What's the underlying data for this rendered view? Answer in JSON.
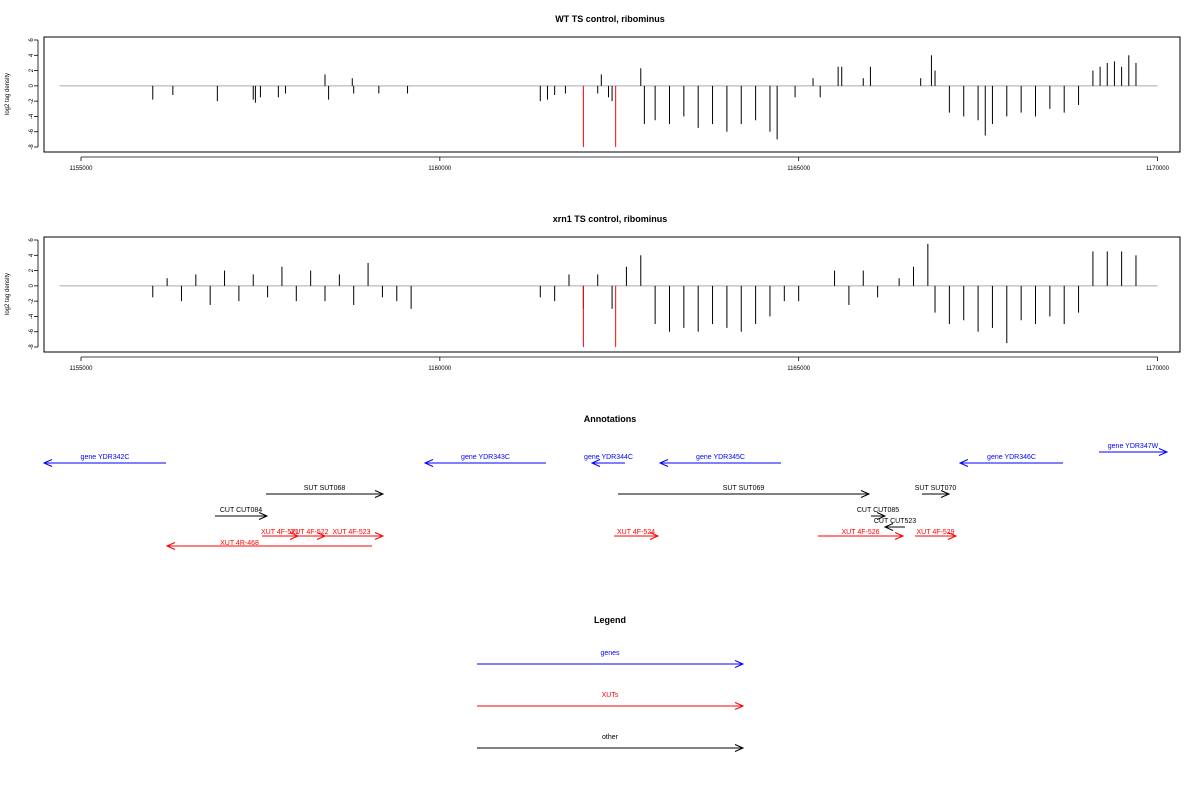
{
  "colors": {
    "gene": "#0000FF",
    "xut": "#FF0000",
    "other": "#000000",
    "baseline": "#AAAAAA",
    "highlight": "#FF0000"
  },
  "chart_data": [
    {
      "type": "bar",
      "title": "WT TS control, ribominus",
      "ylabel": "log2 tag density",
      "xlim": [
        1154700,
        1170000
      ],
      "ylim": [
        -8,
        6
      ],
      "xticks": [
        1155000,
        1160000,
        1165000,
        1170000
      ],
      "yticks": [
        6,
        4,
        2,
        0,
        -2,
        -4,
        -6,
        -8
      ],
      "highlight_positions": [
        1162000,
        1162450
      ],
      "x": [
        1156000,
        1156280,
        1156900,
        1157400,
        1157430,
        1157500,
        1157750,
        1157850,
        1158400,
        1158450,
        1158780,
        1158800,
        1159150,
        1159550,
        1161400,
        1161500,
        1161600,
        1161750,
        1162200,
        1162250,
        1162350,
        1162400,
        1162800,
        1162850,
        1163000,
        1163200,
        1163400,
        1163600,
        1163800,
        1164000,
        1164200,
        1164400,
        1164600,
        1164700,
        1164950,
        1165200,
        1165300,
        1165550,
        1165600,
        1165900,
        1166000,
        1166700,
        1166850,
        1166900,
        1167100,
        1167300,
        1167500,
        1167600,
        1167700,
        1167900,
        1168100,
        1168300,
        1168500,
        1168700,
        1168900,
        1169100,
        1169200,
        1169300,
        1169400,
        1169500,
        1169600,
        1169700
      ],
      "y": [
        -1.8,
        -1.2,
        -2,
        -1.8,
        -2.2,
        -1.5,
        -1.5,
        -1,
        1.5,
        -1.8,
        1,
        -1,
        -1,
        -1,
        -2,
        -1.8,
        -1.2,
        -1,
        -1,
        1.5,
        -1.5,
        -2,
        2.3,
        -5,
        -4.5,
        -5,
        -4,
        -5.5,
        -5,
        -6,
        -5,
        -4.5,
        -6,
        -7,
        -1.5,
        1,
        -1.5,
        2.5,
        2.5,
        1,
        2.5,
        1,
        4,
        2,
        -3.5,
        -4,
        -4.5,
        -6.5,
        -5,
        -4,
        -3.5,
        -4,
        -3,
        -3.5,
        -2.5,
        2,
        2.5,
        3,
        3.2,
        2.5,
        4,
        3
      ]
    },
    {
      "type": "bar",
      "title": "xrn1 TS control, ribominus",
      "ylabel": "log2 tag density",
      "xlim": [
        1154700,
        1170000
      ],
      "ylim": [
        -8,
        6
      ],
      "xticks": [
        1155000,
        1160000,
        1165000,
        1170000
      ],
      "yticks": [
        6,
        4,
        2,
        0,
        -2,
        -4,
        -6,
        -8
      ],
      "highlight_positions": [
        1162000,
        1162450
      ],
      "x": [
        1156000,
        1156200,
        1156400,
        1156600,
        1156800,
        1157000,
        1157200,
        1157400,
        1157600,
        1157800,
        1158000,
        1158200,
        1158400,
        1158600,
        1158800,
        1159000,
        1159200,
        1159400,
        1159600,
        1161400,
        1161600,
        1161800,
        1162000,
        1162200,
        1162400,
        1162600,
        1162800,
        1163000,
        1163200,
        1163400,
        1163600,
        1163800,
        1164000,
        1164200,
        1164400,
        1164600,
        1164800,
        1165000,
        1165500,
        1165700,
        1165900,
        1166100,
        1166400,
        1166600,
        1166800,
        1166900,
        1167100,
        1167300,
        1167500,
        1167700,
        1167900,
        1168100,
        1168300,
        1168500,
        1168700,
        1168900,
        1169100,
        1169300,
        1169500,
        1169700
      ],
      "y": [
        -1.5,
        1,
        -2,
        1.5,
        -2.5,
        2,
        -2,
        1.5,
        -1.5,
        2.5,
        -2,
        2,
        -2,
        1.5,
        -2.5,
        3,
        -1.5,
        -2,
        -3,
        -1.5,
        -2,
        1.5,
        -3,
        1.5,
        -3,
        2.5,
        4,
        -5,
        -6,
        -5.5,
        -6,
        -5,
        -5.5,
        -6,
        -5,
        -4,
        -2,
        -2,
        2,
        -2.5,
        2,
        -1.5,
        1,
        2.5,
        5.5,
        -3.5,
        -5,
        -4.5,
        -6,
        -5.5,
        -7.5,
        -4.5,
        -5,
        -4,
        -5,
        -3.5,
        4.5,
        4.5,
        4.5,
        4
      ]
    },
    {
      "type": "annotation",
      "title": "Annotations",
      "features": [
        {
          "label": "gene YDR342C",
          "kind": "gene",
          "dir": "left",
          "start": 1154700,
          "end": 1159760,
          "row": 0
        },
        {
          "label": "gene YDR343C",
          "kind": "gene",
          "dir": "left",
          "start": 1158730,
          "end": 1163780,
          "row": 0
        },
        {
          "label": "gene YDR344C",
          "kind": "gene",
          "dir": "left",
          "start": 1162830,
          "end": 1164140,
          "row": 0
        },
        {
          "label": "gene YDR345C",
          "kind": "gene",
          "dir": "left",
          "start": 1164140,
          "end": 1169190,
          "row": 0
        },
        {
          "label": "gene YDR346C",
          "kind": "gene",
          "dir": "left",
          "start": 1167090,
          "end": 1172140,
          "row": 0
        },
        {
          "label": "gene YDR347W",
          "kind": "gene",
          "dir": "right",
          "start": 1170960,
          "end": 1173800,
          "row": -1
        },
        {
          "label": "SUT SUT068",
          "kind": "other",
          "dir": "right",
          "start": 1157290,
          "end": 1162080,
          "row": 1
        },
        {
          "label": "SUT SUT069",
          "kind": "other",
          "dir": "right",
          "start": 1162540,
          "end": 1172910,
          "row": 1
        },
        {
          "label": "SUT SUT070",
          "kind": "other",
          "dir": "right",
          "start": 1171200,
          "end": 1172310,
          "row": 1
        },
        {
          "label": "CUT CUT084",
          "kind": "other",
          "dir": "right",
          "start": 1155170,
          "end": 1157330,
          "row": 2
        },
        {
          "label": "CUT CUT085",
          "kind": "other",
          "dir": "right",
          "start": 1170330,
          "end": 1170600,
          "row": 2
        },
        {
          "label": "CUT CUT523",
          "kind": "other",
          "dir": "left",
          "start": 1170640,
          "end": 1171490,
          "row": 3
        },
        {
          "label": "XUT 4F-521",
          "kind": "xut",
          "dir": "right",
          "start": 1157210,
          "end": 1158220,
          "row": 4
        },
        {
          "label": "XUT 4F-522",
          "kind": "xut",
          "dir": "right",
          "start": 1158140,
          "end": 1159390,
          "row": 4
        },
        {
          "label": "XUT 4F-523",
          "kind": "xut",
          "dir": "right",
          "start": 1159230,
          "end": 1162040,
          "row": 4
        },
        {
          "label": "XUT 4R-468",
          "kind": "xut",
          "dir": "left",
          "start": 1155170,
          "end": 1161670,
          "row": 5
        },
        {
          "label": "XUT 4F-524",
          "kind": "xut",
          "dir": "right",
          "start": 1162510,
          "end": 1164330,
          "row": 4
        },
        {
          "label": "XUT 4F-526",
          "kind": "xut",
          "dir": "right",
          "start": 1168720,
          "end": 1172300,
          "row": 4
        },
        {
          "label": "XUT 4F-529",
          "kind": "xut",
          "dir": "right",
          "start": 1171080,
          "end": 1172720,
          "row": 4
        }
      ]
    },
    {
      "type": "legend",
      "title": "Legend",
      "entries": [
        {
          "label": "genes",
          "kind": "gene"
        },
        {
          "label": "XUTs",
          "kind": "xut"
        },
        {
          "label": "other",
          "kind": "other"
        }
      ]
    }
  ]
}
